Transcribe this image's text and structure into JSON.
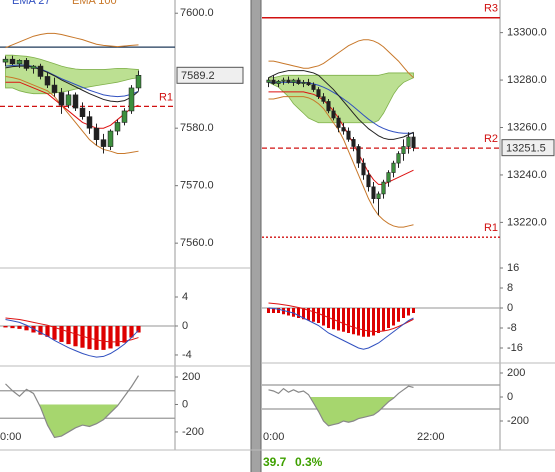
{
  "chart_data": [
    {
      "type": "candlestick",
      "ylim": [
        7556.2,
        7602.3
      ],
      "yticks": [
        {
          "value": 7600,
          "label": "7600.0"
        },
        {
          "value": 7580,
          "label": "7580.0"
        },
        {
          "value": 7570,
          "label": "7570.0"
        },
        {
          "value": 7560,
          "label": "7560.0"
        }
      ],
      "open": [
        7591.5,
        7592.0,
        7591.2,
        7591.8,
        7590.4,
        7590.8,
        7589.0,
        7587.5,
        7586.2,
        7584.0,
        7585.8,
        7583.5,
        7582.0,
        7580.0,
        7578.0,
        7576.8,
        7579.5,
        7581.0,
        7583.0,
        7587.0
      ],
      "high": [
        7592.5,
        7592.6,
        7592.0,
        7592.2,
        7591.0,
        7591.2,
        7589.8,
        7588.8,
        7587.0,
        7586.5,
        7586.2,
        7584.5,
        7583.0,
        7580.8,
        7579.0,
        7579.8,
        7581.5,
        7583.5,
        7587.5,
        7590.0
      ],
      "low": [
        7590.8,
        7591.0,
        7590.5,
        7590.0,
        7589.5,
        7588.5,
        7587.0,
        7585.5,
        7582.5,
        7583.5,
        7583.0,
        7581.5,
        7579.0,
        7577.0,
        7575.6,
        7576.2,
        7578.8,
        7580.5,
        7582.5,
        7586.5
      ],
      "close": [
        7592.0,
        7591.2,
        7591.8,
        7590.4,
        7590.8,
        7589.0,
        7587.5,
        7586.2,
        7584.0,
        7585.8,
        7583.5,
        7582.0,
        7580.0,
        7578.0,
        7576.8,
        7579.5,
        7581.0,
        7583.0,
        7587.0,
        7589.2
      ],
      "up_color": "#3d8f3d",
      "down_color": "#202020",
      "cloud": {
        "color": "#a6d66e",
        "upper": [
          7592.7,
          7592.7,
          7592.6,
          7592.5,
          7592.3,
          7592,
          7591.6,
          7591.2,
          7590.8,
          7590.5,
          7590.3,
          7590.2,
          7590.2,
          7590.2,
          7590.2,
          7590.3,
          7590.4,
          7590.4,
          7590.3,
          7590.2
        ],
        "lower": [
          7587,
          7587,
          7586.5,
          7586.2,
          7586,
          7586,
          7586,
          7586.1,
          7586.3,
          7586.5,
          7586.8,
          7587,
          7587.2,
          7587.4,
          7587.6,
          7587.8,
          7588,
          7588.3,
          7588.6,
          7588.8
        ]
      },
      "series": [
        {
          "name": "EMA 27",
          "color": "#3050c0",
          "values": [
            7590.8,
            7590.9,
            7591,
            7591,
            7590.7,
            7590.3,
            7589.8,
            7589.2,
            7588.6,
            7588.1,
            7587.6,
            7587.1,
            7586.6,
            7586.2,
            7585.8,
            7585.6,
            7585.5,
            7585.6,
            7585.9,
            7586.4
          ]
        },
        {
          "name": "EMA 100",
          "color": "#c8782a",
          "values": [
            7594,
            7594.5,
            7595,
            7595.5,
            7596,
            7596.3,
            7596.5,
            7596.5,
            7596.3,
            7596,
            7595.7,
            7595.4,
            7595,
            7594.6,
            7594.4,
            7594.3,
            7594.2,
            7594.3,
            7594.4,
            7594.5
          ]
        },
        {
          "color": "#c8782a",
          "values": [
            7589,
            7588.8,
            7588.5,
            7588,
            7587.5,
            7587,
            7586.5,
            7585.5,
            7584,
            7582.5,
            7581,
            7579.5,
            7578,
            7577,
            7576.3,
            7576,
            7575.6,
            7575.6,
            7575.8,
            7576
          ]
        },
        {
          "color": "#222222",
          "values": [
            7590.5,
            7590.7,
            7590.8,
            7590.8,
            7590.6,
            7590.2,
            7589.7,
            7589.1,
            7588.4,
            7587.8,
            7587.2,
            7586.6,
            7586.0,
            7585.5,
            7585.0,
            7584.7,
            7584.6,
            7584.8,
            7585.4,
            7586.4
          ]
        },
        {
          "color": "#dd1111",
          "values": [
            7588,
            7588,
            7588,
            7587.5,
            7587,
            7586.5,
            7586,
            7585,
            7584,
            7583,
            7582,
            7581,
            7580.5,
            7580,
            7580,
            7580.5,
            7581.5,
            7582.5,
            7583.5,
            7584
          ]
        }
      ],
      "levels": [
        {
          "value": 7594.1,
          "color": "#1f3a5a",
          "style": "solid"
        },
        {
          "name": "R1",
          "value": 7583.8,
          "color": "#d01010",
          "style": "dashed"
        }
      ],
      "last": 7589.2
    },
    {
      "type": "macd",
      "ylim": [
        -4.97,
        7.45
      ],
      "yticks": [
        4,
        0,
        -4
      ],
      "histogram": {
        "color": "#dd0000",
        "values": [
          -0.2,
          -0.3,
          -0.4,
          -0.6,
          -0.9,
          -1.2,
          -1.5,
          -1.9,
          -2.2,
          -2.5,
          -2.8,
          -3.0,
          -3.2,
          -3.3,
          -3.3,
          -3.1,
          -2.8,
          -2.3,
          -1.6,
          -0.9
        ]
      },
      "series": [
        {
          "color": "#dd1111",
          "values": [
            1.1,
            1.0,
            0.9,
            0.7,
            0.5,
            0.3,
            0.1,
            -0.2,
            -0.5,
            -0.8,
            -1.1,
            -1.4,
            -1.7,
            -1.9,
            -2.1,
            -2.2,
            -2.2,
            -2.1,
            -1.9,
            -1.6
          ]
        },
        {
          "color": "#3050c0",
          "values": [
            0.9,
            0.7,
            0.5,
            0.1,
            -0.4,
            -0.9,
            -1.4,
            -2.0,
            -2.5,
            -3.0,
            -3.4,
            -3.8,
            -4.1,
            -4.3,
            -4.2,
            -3.8,
            -3.2,
            -2.5,
            -1.6,
            -0.6
          ]
        }
      ],
      "levels": [
        {
          "value": 0,
          "color": "#aaaaaa",
          "style": "solid"
        }
      ]
    },
    {
      "type": "cci",
      "ylim": [
        -295,
        251
      ],
      "yticks": [
        200,
        0,
        -200
      ],
      "color": "#888888",
      "fill": "#a6d66e",
      "values": [
        150,
        100,
        60,
        110,
        80,
        -20,
        -150,
        -240,
        -230,
        -200,
        -170,
        -150,
        -160,
        -140,
        -110,
        -60,
        -10,
        60,
        130,
        210
      ],
      "levels": [
        {
          "value": 100,
          "color": "#999999",
          "style": "solid"
        },
        {
          "value": -100,
          "color": "#999999",
          "style": "solid"
        }
      ]
    },
    {
      "type": "candlestick",
      "ylim": [
        13203.3,
        13313.75
      ],
      "yticks": [
        {
          "value": 13300,
          "label": "13300.0"
        },
        {
          "value": 13280,
          "label": "13280.0"
        },
        {
          "value": 13260,
          "label": "13260.0"
        },
        {
          "value": 13240,
          "label": "13240.0"
        },
        {
          "value": 13220,
          "label": "13220.0"
        }
      ],
      "open": [
        13279,
        13280,
        13278.5,
        13279.5,
        13280,
        13279,
        13280,
        13278.5,
        13279,
        13278,
        13276,
        13273,
        13271,
        13267,
        13264,
        13260,
        13258.5,
        13255,
        13252,
        13245,
        13240,
        13235,
        13230,
        13232,
        13237,
        13241,
        13245,
        13249,
        13252,
        13256
      ],
      "high": [
        13281,
        13282,
        13280,
        13281,
        13281.5,
        13280.5,
        13281,
        13280,
        13280.5,
        13279,
        13277,
        13274.5,
        13272,
        13268.5,
        13265,
        13262,
        13260,
        13256,
        13253,
        13247,
        13242,
        13237,
        13233,
        13238,
        13242,
        13246,
        13250,
        13255,
        13258,
        13258
      ],
      "low": [
        13277,
        13278,
        13277,
        13278,
        13278.5,
        13277.5,
        13278,
        13277,
        13277.5,
        13275,
        13272,
        13270,
        13266,
        13263,
        13258,
        13257,
        13254,
        13250,
        13243,
        13238,
        13233,
        13228,
        13223,
        13230,
        13235,
        13239,
        13243,
        13246,
        13249,
        13250
      ],
      "close": [
        13280,
        13278.5,
        13279.5,
        13280,
        13279,
        13280,
        13278.5,
        13279,
        13278,
        13276,
        13273,
        13271,
        13267,
        13264,
        13260,
        13258.5,
        13255,
        13252,
        13245,
        13240,
        13235,
        13230,
        13232,
        13237,
        13241,
        13245,
        13249,
        13252,
        13256,
        13251.5
      ],
      "up_color": "#3d8f3d",
      "down_color": "#202020",
      "cloud": {
        "color": "#a6d66e",
        "upper": [
          13281,
          13281,
          13281.5,
          13282,
          13282,
          13282,
          13282,
          13282,
          13282,
          13282,
          13282,
          13282,
          13282,
          13282,
          13282,
          13282,
          13282,
          13282,
          13282,
          13282,
          13282,
          13282,
          13282,
          13282.5,
          13283,
          13283,
          13283,
          13283,
          13283,
          13283
        ],
        "lower": [
          13279,
          13278,
          13277,
          13275,
          13273,
          13270,
          13268,
          13266,
          13264,
          13263,
          13262,
          13262,
          13262,
          13262,
          13262,
          13262,
          13262,
          13262,
          13262,
          13262,
          13262,
          13262,
          13263,
          13266,
          13270,
          13274,
          13277,
          13279,
          13280,
          13281
        ]
      },
      "series": [
        {
          "color": "#3050c0",
          "values": [
            13279,
            13279,
            13279,
            13279,
            13279,
            13279,
            13279,
            13279,
            13278.8,
            13278.4,
            13277.8,
            13277,
            13276,
            13274.8,
            13273.5,
            13272,
            13270.5,
            13268.8,
            13267,
            13265.2,
            13263.5,
            13262,
            13260.6,
            13259.6,
            13258.8,
            13258.2,
            13257.8,
            13257.6,
            13257.6,
            13257.6
          ]
        },
        {
          "color": "#c8782a",
          "values": [
            13288,
            13288,
            13287.5,
            13287,
            13286.5,
            13286,
            13285.5,
            13285,
            13285,
            13285.5,
            13286,
            13287,
            13288.5,
            13290,
            13291.5,
            13293,
            13294.5,
            13295.5,
            13296.5,
            13297,
            13297,
            13296.5,
            13295.5,
            13294,
            13292,
            13290,
            13288,
            13285.5,
            13283,
            13281
          ]
        },
        {
          "color": "#c8782a",
          "values": [
            13272,
            13272,
            13272.5,
            13273,
            13273,
            13273,
            13273,
            13273,
            13272.5,
            13271.5,
            13270,
            13268,
            13265,
            13262,
            13259,
            13255,
            13250,
            13245,
            13240,
            13235,
            13230,
            13226,
            13223,
            13221,
            13219.5,
            13218.5,
            13218,
            13218,
            13218.5,
            13219
          ]
        },
        {
          "color": "#222222",
          "values": [
            13281,
            13282,
            13283,
            13283.5,
            13284,
            13284,
            13284,
            13284,
            13283.5,
            13283,
            13282,
            13280,
            13278,
            13276,
            13273.5,
            13271,
            13268.5,
            13266,
            13263.5,
            13261.5,
            13259.5,
            13258,
            13256.5,
            13255.5,
            13255,
            13255,
            13255.5,
            13256,
            13257,
            13258
          ]
        },
        {
          "color": "#dd1111",
          "values": [
            13275,
            13275,
            13275,
            13275,
            13275,
            13275,
            13275,
            13275,
            13274.5,
            13274,
            13273,
            13271.5,
            13269.5,
            13267,
            13264,
            13260.5,
            13257,
            13253,
            13249,
            13245,
            13241,
            13238,
            13236,
            13236,
            13237,
            13238,
            13239,
            13240,
            13241,
            13242
          ]
        }
      ],
      "levels": [
        {
          "name": "R3",
          "value": 13306.25,
          "color": "#d01010",
          "style": "solid"
        },
        {
          "name": "R2",
          "value": 13251.3,
          "color": "#d01010",
          "style": "dashed"
        },
        {
          "name": "R1",
          "value": 13213.75,
          "color": "#d01010",
          "style": "dotted"
        }
      ],
      "last": 13251.5
    },
    {
      "type": "macd",
      "ylim": [
        -21.6,
        18.4
      ],
      "yticks": [
        16,
        8,
        0,
        -8,
        -16
      ],
      "histogram": {
        "color": "#dd0000",
        "values": [
          -2,
          -2,
          -2,
          -2.5,
          -3,
          -3.5,
          -4,
          -4.5,
          -5,
          -5.5,
          -6,
          -7,
          -8,
          -8.5,
          -9,
          -9.5,
          -10,
          -10.5,
          -11,
          -11.5,
          -11.5,
          -11,
          -10,
          -9,
          -8,
          -7,
          -5.5,
          -4,
          -3,
          -2
        ]
      },
      "series": [
        {
          "color": "#dd1111",
          "values": [
            2,
            1.8,
            1.6,
            1.3,
            1,
            0.6,
            0.2,
            -0.3,
            -0.9,
            -1.5,
            -2.2,
            -3,
            -3.8,
            -4.6,
            -5.4,
            -6.2,
            -7,
            -7.7,
            -8.3,
            -8.8,
            -9.2,
            -9.4,
            -9.4,
            -9.2,
            -8.8,
            -8.2,
            -7.4,
            -6.5,
            -5.5,
            -4.5
          ]
        },
        {
          "color": "#3050c0",
          "values": [
            0,
            -0.2,
            -0.5,
            -1,
            -1.5,
            -2,
            -3,
            -4,
            -5,
            -6,
            -7,
            -8.5,
            -10,
            -11,
            -12,
            -13,
            -14,
            -15,
            -16,
            -16.5,
            -16,
            -15,
            -14,
            -12.5,
            -11,
            -9.5,
            -8,
            -6.5,
            -5,
            -4
          ]
        }
      ],
      "levels": [
        {
          "value": 0,
          "color": "#aaaaaa",
          "style": "solid"
        }
      ]
    },
    {
      "type": "cci",
      "ylim": [
        -400,
        266.7
      ],
      "yticks": [
        200,
        0,
        -200
      ],
      "color": "#888888",
      "fill": "#a6d66e",
      "values": [
        60,
        50,
        30,
        70,
        40,
        60,
        40,
        50,
        20,
        -50,
        -120,
        -200,
        -240,
        -230,
        -220,
        -200,
        -210,
        -200,
        -180,
        -170,
        -160,
        -150,
        -120,
        -80,
        -40,
        -10,
        30,
        60,
        90,
        80
      ],
      "levels": [
        {
          "value": 100,
          "color": "#999999",
          "style": "solid"
        },
        {
          "value": -100,
          "color": "#999999",
          "style": "solid"
        }
      ]
    }
  ],
  "time_labels": [
    "0:00",
    "0:00",
    "22:00"
  ],
  "footer": [
    "39.7",
    "0.3%"
  ]
}
